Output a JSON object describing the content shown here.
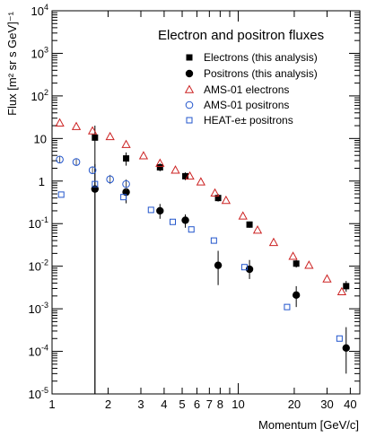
{
  "chart_data": {
    "type": "scatter",
    "title": "Electron and positron fluxes",
    "xlabel": "Momentum [GeV/c]",
    "ylabel": "Flux [m² sr s GeV]⁻¹",
    "x_scale": "log",
    "y_scale": "log",
    "xlim": [
      1,
      45
    ],
    "ylim": [
      1e-05,
      10000
    ],
    "x_tick_labels": [
      "1",
      "2",
      "3",
      "4",
      "5",
      "6",
      "7",
      "8",
      "10",
      "20",
      "30",
      "40"
    ],
    "x_tick_values": [
      1,
      2,
      3,
      4,
      5,
      6,
      7,
      8,
      10,
      20,
      30,
      40
    ],
    "y_tick_labels": [
      "10-5",
      "10-4",
      "10-3",
      "10-2",
      "10-1",
      "1",
      "10",
      "102",
      "103",
      "104"
    ],
    "y_tick_exponents": [
      -5,
      -4,
      -3,
      -2,
      -1,
      0,
      1,
      2,
      3,
      4
    ],
    "legend_position": "top-right",
    "series": [
      {
        "name": "Electrons (this analysis)",
        "marker": "square-filled",
        "color": "#000000",
        "points": [
          {
            "x": 1.7,
            "y": 10.5,
            "lo": 1e-05,
            "hi": 20
          },
          {
            "x": 2.5,
            "y": 3.4,
            "lo": 2.3,
            "hi": 4.7
          },
          {
            "x": 3.8,
            "y": 2.1,
            "lo": 1.7,
            "hi": 2.6
          },
          {
            "x": 5.2,
            "y": 1.3,
            "lo": 1.05,
            "hi": 1.6
          },
          {
            "x": 7.8,
            "y": 0.4,
            "lo": 0.33,
            "hi": 0.5
          },
          {
            "x": 11.5,
            "y": 0.095,
            "lo": 0.08,
            "hi": 0.112
          },
          {
            "x": 20.5,
            "y": 0.0115,
            "lo": 0.0093,
            "hi": 0.014
          },
          {
            "x": 38,
            "y": 0.0034,
            "lo": 0.0025,
            "hi": 0.0045
          }
        ]
      },
      {
        "name": "Positrons (this analysis)",
        "marker": "circle-filled",
        "color": "#000000",
        "points": [
          {
            "x": 1.7,
            "y": 0.65,
            "lo": 1e-05,
            "hi": 2.5
          },
          {
            "x": 2.5,
            "y": 0.55,
            "lo": 0.3,
            "hi": 0.95
          },
          {
            "x": 3.8,
            "y": 0.2,
            "lo": 0.13,
            "hi": 0.29
          },
          {
            "x": 5.2,
            "y": 0.12,
            "lo": 0.08,
            "hi": 0.165
          },
          {
            "x": 7.8,
            "y": 0.0105,
            "lo": 0.0036,
            "hi": 0.023
          },
          {
            "x": 11.5,
            "y": 0.0085,
            "lo": 0.005,
            "hi": 0.014
          },
          {
            "x": 20.5,
            "y": 0.0021,
            "lo": 0.0011,
            "hi": 0.0034
          },
          {
            "x": 38,
            "y": 0.00012,
            "lo": 3e-05,
            "hi": 0.00037
          }
        ]
      },
      {
        "name": "AMS-01 electrons",
        "marker": "triangle-open",
        "color": "#cc2222",
        "points": [
          {
            "x": 1.1,
            "y": 23
          },
          {
            "x": 1.35,
            "y": 19
          },
          {
            "x": 1.65,
            "y": 15
          },
          {
            "x": 2.05,
            "y": 11
          },
          {
            "x": 2.5,
            "y": 7.2
          },
          {
            "x": 3.1,
            "y": 3.9
          },
          {
            "x": 3.8,
            "y": 2.6
          },
          {
            "x": 4.6,
            "y": 1.8
          },
          {
            "x": 5.5,
            "y": 1.3
          },
          {
            "x": 6.3,
            "y": 0.95
          },
          {
            "x": 7.5,
            "y": 0.52
          },
          {
            "x": 8.6,
            "y": 0.35
          },
          {
            "x": 10.6,
            "y": 0.15
          },
          {
            "x": 12.7,
            "y": 0.07
          },
          {
            "x": 15.5,
            "y": 0.036
          },
          {
            "x": 19.7,
            "y": 0.017
          },
          {
            "x": 24,
            "y": 0.0105
          },
          {
            "x": 30,
            "y": 0.005
          },
          {
            "x": 36,
            "y": 0.0025
          }
        ]
      },
      {
        "name": "AMS-01 positrons",
        "marker": "circle-open",
        "color": "#2255cc",
        "points": [
          {
            "x": 1.1,
            "y": 3.2,
            "lo": 2.7,
            "hi": 3.8
          },
          {
            "x": 1.35,
            "y": 2.8,
            "lo": 2.3,
            "hi": 3.3
          },
          {
            "x": 1.65,
            "y": 1.8,
            "lo": 1.5,
            "hi": 2.2
          },
          {
            "x": 2.05,
            "y": 1.1,
            "lo": 0.85,
            "hi": 1.4
          },
          {
            "x": 2.5,
            "y": 0.85,
            "lo": 0.62,
            "hi": 1.1
          }
        ]
      },
      {
        "name": "HEAT-e± positrons",
        "marker": "square-open",
        "color": "#2255cc",
        "points": [
          {
            "x": 1.12,
            "y": 0.48
          },
          {
            "x": 1.7,
            "y": 0.85
          },
          {
            "x": 2.42,
            "y": 0.42
          },
          {
            "x": 3.4,
            "y": 0.21
          },
          {
            "x": 4.45,
            "y": 0.11
          },
          {
            "x": 5.6,
            "y": 0.073
          },
          {
            "x": 7.4,
            "y": 0.04
          },
          {
            "x": 10.8,
            "y": 0.0095
          },
          {
            "x": 18.3,
            "y": 0.0011
          },
          {
            "x": 35,
            "y": 0.0002
          }
        ]
      }
    ]
  }
}
